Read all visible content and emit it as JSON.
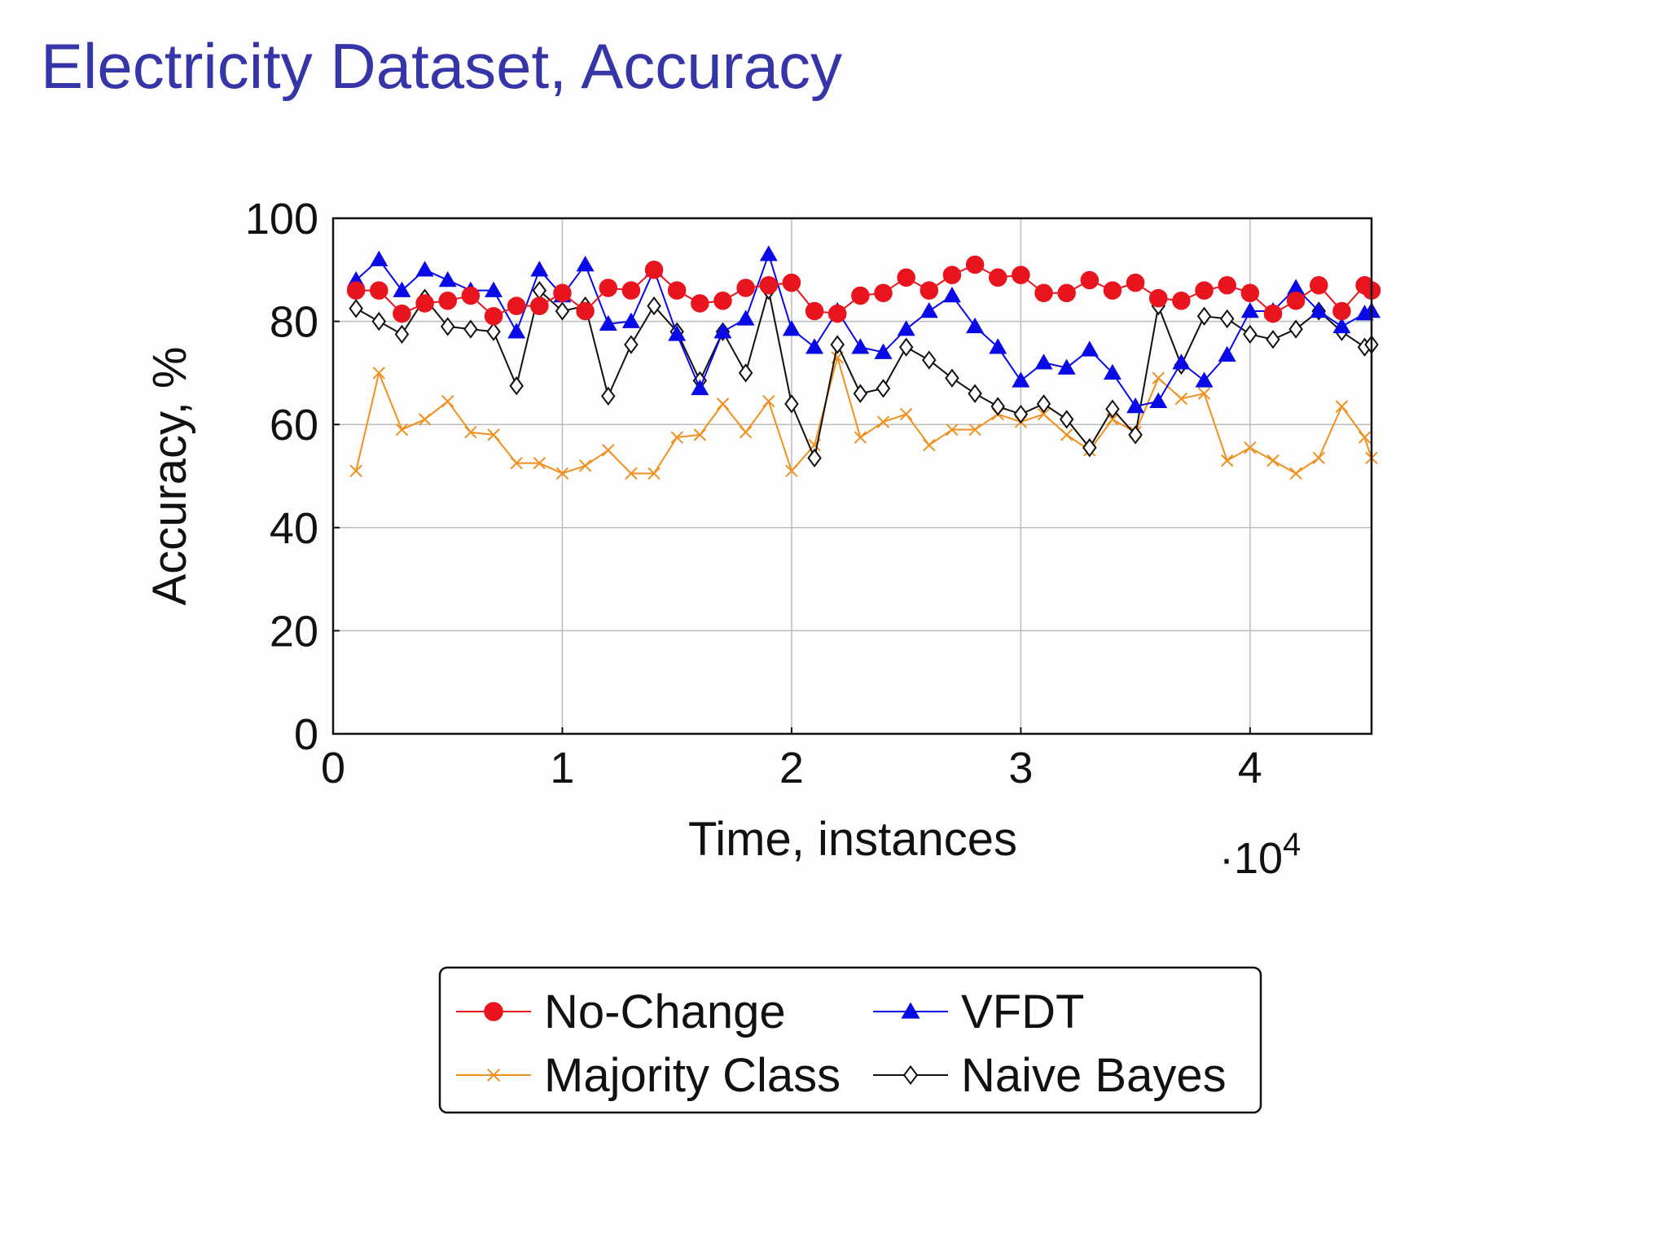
{
  "slide": {
    "title": "Electricity Dataset, Accuracy"
  },
  "colors": {
    "title": "#3535a8",
    "no_change": "#e8141e",
    "vfdt": "#0a0ae6",
    "majority": "#f0901e",
    "naive_bayes": "#111111",
    "grid": "#bdbdbd"
  },
  "chart_data": {
    "type": "line",
    "xlabel": "Time, instances",
    "ylabel": "Accuracy, %",
    "x_multiplier_label": "·10",
    "x_multiplier_exp": "4",
    "xlim": [
      0,
      45300
    ],
    "ylim": [
      0,
      100
    ],
    "xticks": [
      0,
      10000,
      20000,
      30000,
      40000
    ],
    "xtick_labels": [
      "0",
      "1",
      "2",
      "3",
      "4"
    ],
    "yticks": [
      0,
      20,
      40,
      60,
      80,
      100
    ],
    "ytick_labels": [
      "0",
      "20",
      "40",
      "60",
      "80",
      "100"
    ],
    "grid": true,
    "legend_position": "bottom-center",
    "x": [
      1000,
      2000,
      3000,
      4000,
      5000,
      6000,
      7000,
      8000,
      9000,
      10000,
      11000,
      12000,
      13000,
      14000,
      15000,
      16000,
      17000,
      18000,
      19000,
      20000,
      21000,
      22000,
      23000,
      24000,
      25000,
      26000,
      27000,
      28000,
      29000,
      30000,
      31000,
      32000,
      33000,
      34000,
      35000,
      36000,
      37000,
      38000,
      39000,
      40000,
      41000,
      42000,
      43000,
      44000,
      45000,
      45300
    ],
    "series": [
      {
        "name": "No-Change",
        "color_key": "no_change",
        "marker": "circle",
        "values": [
          86,
          86,
          81.5,
          83.5,
          84,
          85,
          81,
          83,
          83,
          85.5,
          82,
          86.5,
          86,
          90,
          86,
          83.5,
          84,
          86.5,
          87,
          87.5,
          82,
          81.5,
          85,
          85.5,
          88.5,
          86,
          89,
          91,
          88.5,
          89,
          85.5,
          85.5,
          88,
          86,
          87.5,
          84.5,
          84,
          86,
          87,
          85.5,
          81.5,
          84,
          87,
          82,
          87,
          86
        ]
      },
      {
        "name": "VFDT",
        "color_key": "vfdt",
        "marker": "triangle",
        "values": [
          88,
          92,
          86,
          90,
          88,
          86,
          86,
          78,
          90,
          85,
          91,
          79.5,
          80,
          90,
          77.5,
          67,
          78,
          80.5,
          93,
          78.5,
          75,
          82,
          75,
          74,
          78.5,
          82,
          85,
          79,
          75,
          68.5,
          72,
          71,
          74.5,
          70,
          63.5,
          64.5,
          72,
          68.5,
          73.5,
          82,
          82,
          86.5,
          82,
          79,
          81.5,
          82
        ]
      },
      {
        "name": "Majority Class",
        "color_key": "majority",
        "marker": "cross",
        "values": [
          51,
          70,
          59,
          61,
          64.5,
          58.5,
          58,
          52.5,
          52.5,
          50.5,
          52,
          55,
          50.5,
          50.5,
          57.5,
          58,
          64,
          58.5,
          64.5,
          51,
          56,
          73,
          57.5,
          60.5,
          62,
          56,
          59,
          59,
          62,
          60.5,
          62,
          58,
          55,
          61,
          58.5,
          69,
          65,
          66,
          53,
          55.5,
          53,
          50.5,
          53.5,
          63.5,
          57.5,
          53.5
        ]
      },
      {
        "name": "Naive Bayes",
        "color_key": "naive_bayes",
        "marker": "diamond",
        "values": [
          82.5,
          80,
          77.5,
          84.5,
          79,
          78.5,
          78,
          67.5,
          86,
          82,
          83,
          65.5,
          75.5,
          83,
          78,
          68.5,
          78,
          70,
          86,
          64,
          53.5,
          75.5,
          66,
          67,
          75,
          72.5,
          69,
          66,
          63.5,
          62,
          64,
          61,
          55.5,
          63,
          58,
          83,
          71.5,
          81,
          80.5,
          77.5,
          76.5,
          78.5,
          82,
          78,
          75,
          75.5
        ]
      }
    ]
  }
}
